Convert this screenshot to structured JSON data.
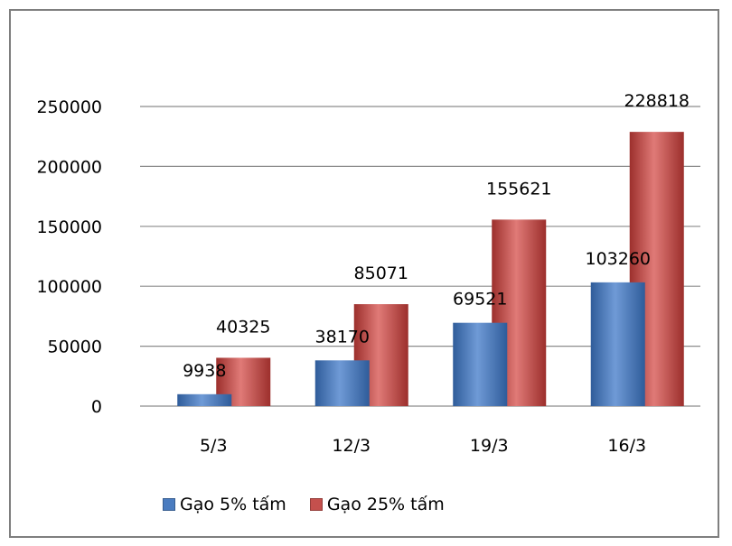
{
  "chart_data": {
    "type": "bar",
    "categories": [
      "5/3",
      "12/3",
      "19/3",
      "16/3"
    ],
    "series": [
      {
        "name": "Gạo 5% tấm",
        "values": [
          9938,
          38170,
          69521,
          103260
        ],
        "color": "#4a7cc0"
      },
      {
        "name": "Gạo 25% tấm",
        "values": [
          40325,
          85071,
          155621,
          228818
        ],
        "color": "#c5504d"
      }
    ],
    "ylim": [
      0,
      250000
    ],
    "yticks": [
      0,
      50000,
      100000,
      150000,
      200000,
      250000
    ],
    "grid": true,
    "legend_position": "bottom",
    "title": "",
    "xlabel": "",
    "ylabel": ""
  }
}
